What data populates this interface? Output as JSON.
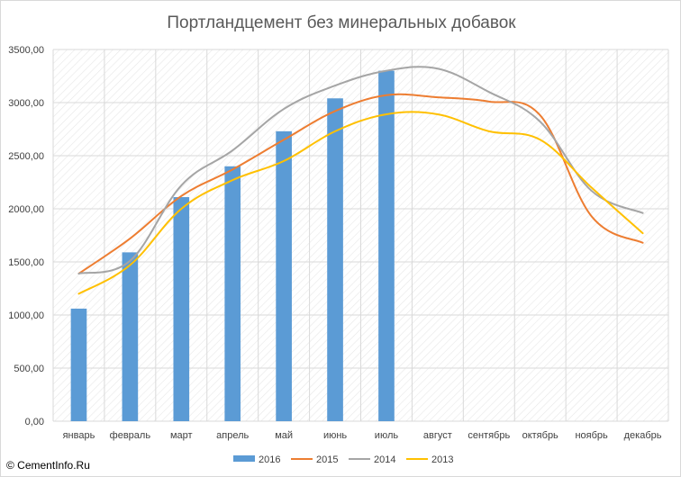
{
  "chart_data": {
    "type": "bar+line",
    "title": "Портландцемент без минеральных добавок",
    "categories": [
      "январь",
      "февраль",
      "март",
      "апрель",
      "май",
      "июнь",
      "июль",
      "август",
      "сентябрь",
      "октябрь",
      "ноябрь",
      "декабрь"
    ],
    "y_ticks": [
      "0,00",
      "500,00",
      "1000,00",
      "1500,00",
      "2000,00",
      "2500,00",
      "3000,00",
      "3500,00"
    ],
    "ylim": [
      0,
      3500
    ],
    "grid": true,
    "legend_position": "bottom",
    "series": [
      {
        "name": "2016",
        "kind": "bar",
        "color": "#5b9bd5",
        "values": [
          1060,
          1590,
          2110,
          2400,
          2730,
          3040,
          3300,
          null,
          null,
          null,
          null,
          null
        ]
      },
      {
        "name": "2015",
        "kind": "line",
        "color": "#ed7d31",
        "values": [
          1390,
          1720,
          2120,
          2370,
          2650,
          2920,
          3070,
          3050,
          3010,
          2880,
          1930,
          1680
        ]
      },
      {
        "name": "2014",
        "kind": "line",
        "color": "#a5a5a5",
        "values": [
          1390,
          1510,
          2220,
          2550,
          2940,
          3160,
          3300,
          3320,
          3100,
          2820,
          2170,
          1960
        ]
      },
      {
        "name": "2013",
        "kind": "line",
        "color": "#ffc000",
        "values": [
          1200,
          1470,
          2000,
          2270,
          2450,
          2730,
          2890,
          2890,
          2730,
          2650,
          2200,
          1770
        ]
      }
    ]
  },
  "copyright": "© CementInfo.Ru"
}
